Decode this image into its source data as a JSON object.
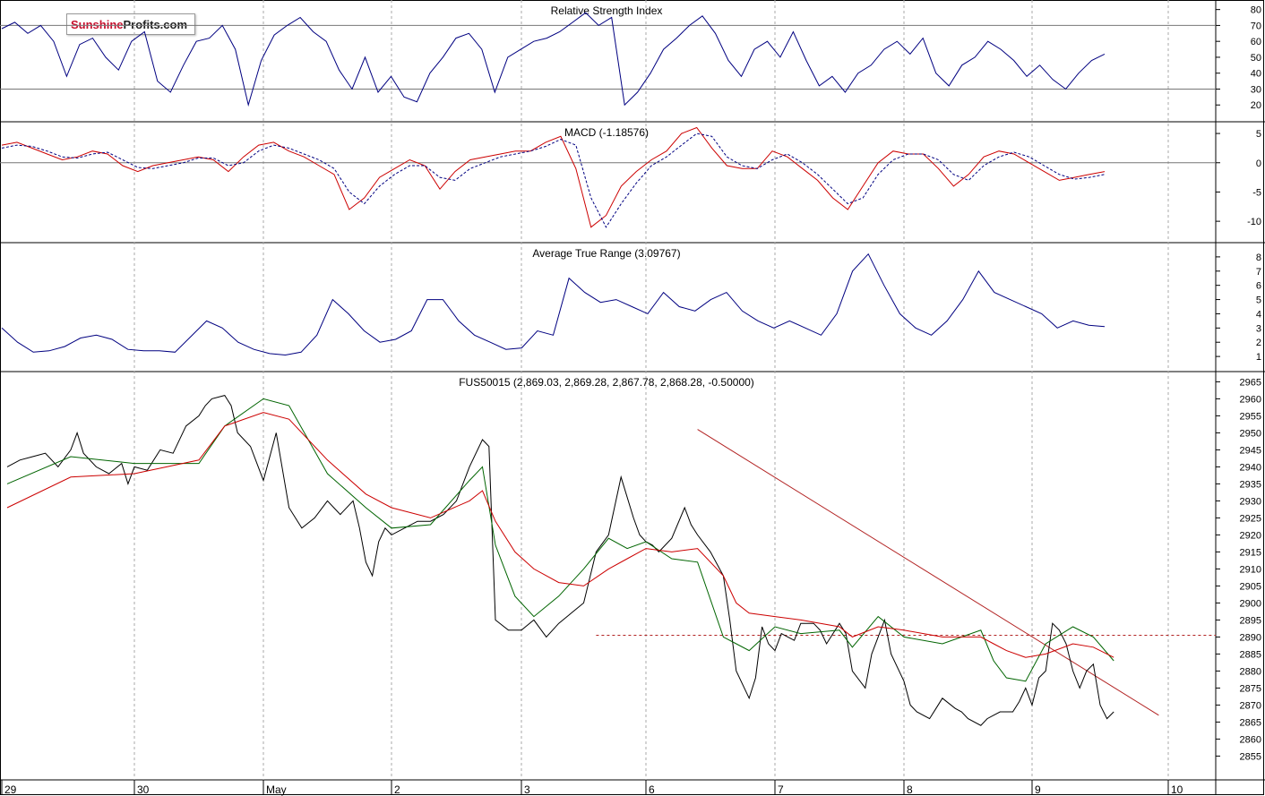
{
  "logo": {
    "part1": "Sunshine",
    "part2": "Profits.com"
  },
  "x_axis": {
    "labels": [
      "29",
      "30",
      "May",
      "2",
      "3",
      "6",
      "7",
      "8",
      "9",
      "10"
    ]
  },
  "chart_data": [
    {
      "type": "line",
      "title": "Relative Strength Index",
      "yticks": [
        20,
        30,
        40,
        50,
        60,
        70,
        80
      ],
      "ylim": [
        10,
        86
      ],
      "reference_lines": [
        30,
        70
      ],
      "series": [
        {
          "color": "#000080",
          "values": [
            68,
            72,
            65,
            70,
            60,
            38,
            58,
            62,
            50,
            42,
            60,
            66,
            35,
            28,
            45,
            60,
            62,
            70,
            55,
            20,
            48,
            64,
            70,
            75,
            66,
            60,
            42,
            30,
            50,
            28,
            38,
            25,
            22,
            40,
            50,
            62,
            65,
            55,
            28,
            50,
            55,
            60,
            62,
            66,
            72,
            78,
            70,
            75,
            20,
            28,
            40,
            55,
            62,
            70,
            76,
            65,
            48,
            38,
            55,
            60,
            50,
            66,
            48,
            32,
            38,
            28,
            40,
            45,
            55,
            60,
            52,
            62,
            40,
            32,
            45,
            50,
            60,
            55,
            48,
            38,
            45,
            36,
            30,
            40,
            48,
            52
          ]
        }
      ]
    },
    {
      "type": "line",
      "title": "MACD (-1.18576)",
      "yticks": [
        -10,
        -5,
        0,
        5
      ],
      "ylim": [
        -13.5,
        7
      ],
      "reference_lines": [
        0
      ],
      "series": [
        {
          "color": "#cc0000",
          "values": [
            3,
            3.5,
            2.5,
            1.5,
            0.5,
            1,
            2,
            1.5,
            -0.5,
            -1.5,
            -0.5,
            0,
            0.5,
            1,
            0.5,
            -1.5,
            1,
            3,
            3.5,
            2,
            1,
            -0.5,
            -2,
            -8,
            -6,
            -2.5,
            -1,
            0.5,
            -0.5,
            -4.5,
            -1.5,
            0.5,
            1,
            1.5,
            2,
            2,
            3.5,
            4.5,
            -1,
            -11,
            -9,
            -4,
            -1.5,
            0.5,
            2,
            5,
            6,
            2.5,
            -0.5,
            -1,
            -1,
            2,
            1,
            -1,
            -3,
            -6,
            -8,
            -4,
            0,
            2,
            1.5,
            1.5,
            -1,
            -4,
            -2,
            1,
            2,
            1.5,
            0,
            -1.5,
            -3,
            -2.5,
            -2,
            -1.5
          ]
        },
        {
          "color": "#000080",
          "values": [
            2.5,
            3,
            2.8,
            2,
            1,
            0.8,
            1.5,
            1.8,
            0.5,
            -0.8,
            -1,
            -0.5,
            0,
            0.8,
            0.8,
            -0.5,
            0,
            2,
            3,
            2.5,
            1.5,
            0.5,
            -1,
            -5,
            -7,
            -4,
            -2,
            -0.5,
            -0.5,
            -2.5,
            -3,
            -1,
            0,
            1,
            1.5,
            2,
            2.8,
            4,
            3,
            -6,
            -11,
            -7,
            -3.5,
            -0.5,
            1,
            3,
            5,
            4.5,
            1,
            -0.5,
            -1,
            0.5,
            1.5,
            0,
            -2,
            -4.5,
            -7,
            -6,
            -2,
            0.5,
            1.5,
            1.5,
            0.5,
            -2,
            -3,
            -0.5,
            1,
            1.8,
            1,
            -0.5,
            -2,
            -2.8,
            -2.5,
            -2
          ]
        }
      ]
    },
    {
      "type": "line",
      "title": "Average True Range (3.09767)",
      "yticks": [
        1,
        2,
        3,
        4,
        5,
        6,
        7,
        8
      ],
      "ylim": [
        0,
        9
      ],
      "series": [
        {
          "color": "#000080",
          "values": [
            3,
            2,
            1.3,
            1.4,
            1.7,
            2.3,
            2.5,
            2.2,
            1.5,
            1.4,
            1.4,
            1.3,
            2.4,
            3.5,
            3,
            2,
            1.5,
            1.2,
            1.1,
            1.3,
            2.5,
            5,
            4,
            2.8,
            2,
            2.2,
            2.8,
            5,
            5,
            3.5,
            2.5,
            2,
            1.5,
            1.6,
            2.8,
            2.5,
            6.5,
            5.5,
            4.8,
            5,
            4.5,
            4,
            5.5,
            4.5,
            4.2,
            5,
            5.5,
            4.2,
            3.5,
            3,
            3.5,
            3,
            2.5,
            4,
            7,
            8.2,
            6,
            4,
            3,
            2.5,
            3.5,
            5,
            7,
            5.5,
            5,
            4.5,
            4,
            3,
            3.5,
            3.2,
            3.1
          ]
        }
      ]
    },
    {
      "type": "line",
      "title": "FUS50015 (2,869.03, 2,869.28, 2,867.78, 2,868.28, -0.50000)",
      "yticks": [
        2855,
        2860,
        2865,
        2870,
        2875,
        2880,
        2885,
        2890,
        2895,
        2900,
        2905,
        2910,
        2915,
        2920,
        2925,
        2930,
        2935,
        2940,
        2945,
        2950,
        2955,
        2960,
        2965
      ],
      "ylim": [
        2848,
        2968
      ],
      "x_range": [
        0,
        9
      ],
      "support_level": 2890.5,
      "trendline": {
        "x": [
          5.4,
          8.93
        ],
        "y": [
          2951,
          2867
        ]
      },
      "series": [
        {
          "color": "#000000",
          "x": [
            0,
            0.1,
            0.2,
            0.3,
            0.4,
            0.5,
            0.55,
            0.6,
            0.7,
            0.8,
            0.9,
            0.95,
            1,
            1.1,
            1.2,
            1.3,
            1.4,
            1.5,
            1.55,
            1.6,
            1.7,
            1.75,
            1.8,
            1.9,
            2,
            2.1,
            2.2,
            2.3,
            2.4,
            2.5,
            2.6,
            2.7,
            2.75,
            2.8,
            2.85,
            2.9,
            2.95,
            3,
            3.1,
            3.2,
            3.3,
            3.4,
            3.5,
            3.6,
            3.7,
            3.75,
            3.8,
            3.9,
            4,
            4.1,
            4.2,
            4.3,
            4.4,
            4.5,
            4.6,
            4.7,
            4.8,
            4.9,
            4.95,
            5,
            5.05,
            5.1,
            5.2,
            5.3,
            5.35,
            5.4,
            5.5,
            5.6,
            5.65,
            5.7,
            5.8,
            5.85,
            5.9,
            5.95,
            6,
            6.05,
            6.1,
            6.15,
            6.2,
            6.3,
            6.35,
            6.4,
            6.5,
            6.55,
            6.6,
            6.7,
            6.75,
            6.8,
            6.85,
            6.9,
            7,
            7.05,
            7.1,
            7.2,
            7.25,
            7.3,
            7.4,
            7.45,
            7.5,
            7.6,
            7.65,
            7.7,
            7.75,
            7.8,
            7.85,
            7.9,
            7.95,
            8,
            8.05,
            8.1,
            8.15,
            8.2,
            8.25,
            8.3,
            8.35,
            8.4,
            8.45,
            8.5,
            8.55,
            8.6
          ],
          "values": [
            2940,
            2942,
            2943,
            2944,
            2940,
            2945,
            2950,
            2944,
            2940,
            2938,
            2941,
            2935,
            2940,
            2939,
            2945,
            2944,
            2952,
            2955,
            2958,
            2960,
            2961,
            2958,
            2950,
            2946,
            2936,
            2950,
            2928,
            2922,
            2925,
            2930,
            2926,
            2930,
            2922,
            2912,
            2908,
            2918,
            2922,
            2920,
            2922,
            2924,
            2924,
            2926,
            2930,
            2940,
            2948,
            2946,
            2895,
            2892,
            2892,
            2895,
            2890,
            2894,
            2897,
            2900,
            2915,
            2920,
            2937,
            2925,
            2920,
            2918,
            2917,
            2915,
            2919,
            2928,
            2923,
            2920,
            2915,
            2908,
            2895,
            2880,
            2872,
            2878,
            2893,
            2888,
            2886,
            2891,
            2890,
            2889,
            2894,
            2894,
            2892,
            2888,
            2894,
            2891,
            2880,
            2875,
            2885,
            2890,
            2895,
            2885,
            2877,
            2870,
            2868,
            2866,
            2869,
            2872,
            2869,
            2868,
            2866,
            2864,
            2866,
            2867,
            2868,
            2868,
            2868,
            2871,
            2875,
            2870,
            2878,
            2880,
            2894,
            2892,
            2888,
            2880,
            2875,
            2880,
            2882,
            2870,
            2866,
            2868
          ]
        },
        {
          "color": "#006400",
          "x": [
            0,
            0.5,
            1,
            1.5,
            1.7,
            2,
            2.2,
            2.5,
            2.8,
            3,
            3.3,
            3.6,
            3.7,
            3.8,
            3.95,
            4.1,
            4.3,
            4.5,
            4.7,
            4.85,
            5,
            5.2,
            5.4,
            5.6,
            5.7,
            5.8,
            6,
            6.2,
            6.5,
            6.6,
            6.8,
            7,
            7.3,
            7.6,
            7.7,
            7.8,
            7.95,
            8.1,
            8.3,
            8.45,
            8.6
          ],
          "values": [
            2935,
            2943,
            2941,
            2941,
            2952,
            2960,
            2958,
            2938,
            2928,
            2922,
            2923,
            2936,
            2940,
            2917,
            2902,
            2896,
            2902,
            2910,
            2919,
            2916,
            2918,
            2913,
            2912,
            2890,
            2888,
            2886,
            2893,
            2891,
            2892,
            2887,
            2896,
            2890,
            2888,
            2892,
            2883,
            2878,
            2877,
            2888,
            2893,
            2890,
            2883
          ]
        },
        {
          "color": "#cc0000",
          "x": [
            0,
            0.5,
            1,
            1.5,
            1.7,
            2,
            2.2,
            2.5,
            2.8,
            3,
            3.3,
            3.6,
            3.7,
            3.8,
            3.95,
            4.1,
            4.3,
            4.5,
            4.7,
            4.85,
            5,
            5.2,
            5.4,
            5.6,
            5.7,
            5.8,
            6,
            6.2,
            6.5,
            6.6,
            6.8,
            7,
            7.3,
            7.6,
            7.7,
            7.8,
            7.95,
            8.1,
            8.3,
            8.45,
            8.6
          ],
          "values": [
            2928,
            2937,
            2938,
            2942,
            2952,
            2956,
            2954,
            2942,
            2932,
            2928,
            2925,
            2930,
            2933,
            2924,
            2915,
            2910,
            2906,
            2905,
            2910,
            2913,
            2916,
            2915,
            2916,
            2908,
            2900,
            2897,
            2896,
            2895,
            2893,
            2890,
            2893,
            2892,
            2890,
            2890,
            2888,
            2886,
            2884,
            2885,
            2888,
            2887,
            2884
          ]
        }
      ]
    }
  ]
}
